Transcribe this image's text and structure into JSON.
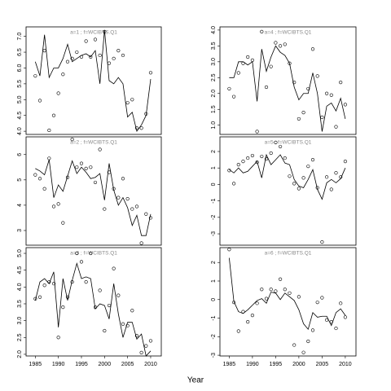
{
  "xlabel": "Year",
  "chart_data": [
    {
      "type": "line",
      "title": "a=1 ; f=WCIBTS.Q1",
      "xlim": [
        1983,
        2012.3
      ],
      "ylim": [
        3.9,
        7.3
      ],
      "yticks": [
        {
          "value": 4,
          "label": "4.0"
        },
        4.5,
        {
          "value": 5,
          "label": "5.0"
        },
        5.5,
        {
          "value": 6,
          "label": "6.0"
        },
        6.5,
        {
          "value": 7,
          "label": "7.0"
        }
      ],
      "x": [
        1985,
        1986,
        1987,
        1988,
        1989,
        1990,
        1991,
        1992,
        1993,
        1994,
        1995,
        1996,
        1997,
        1998,
        1999,
        2000,
        2001,
        2002,
        2003,
        2004,
        2005,
        2006,
        2007,
        2008,
        2009,
        2010
      ],
      "series": [
        {
          "draw": "line",
          "color": "#000000",
          "values": [
            6.2,
            5.75,
            7.05,
            5.7,
            6.0,
            6.0,
            6.3,
            6.75,
            6.2,
            6.3,
            6.4,
            6.45,
            6.35,
            6.55,
            5.5,
            7.2,
            5.6,
            5.5,
            5.7,
            5.5,
            4.45,
            4.6,
            4.0,
            4.2,
            4.5,
            5.65
          ]
        },
        {
          "draw": "points",
          "color": "#000000",
          "values": [
            5.75,
            4.97,
            6.55,
            4.03,
            4.5,
            5.2,
            5.8,
            6.2,
            6.3,
            6.5,
            6.35,
            6.85,
            6.35,
            6.9,
            6.4,
            7.15,
            6.15,
            6.3,
            6.55,
            6.4,
            4.9,
            5.0,
            4.1,
            4.1,
            4.55,
            5.85
          ]
        }
      ]
    },
    {
      "type": "line",
      "title": "a=2 ; f=WCIBTS.Q1",
      "xlim": [
        1983,
        2012.3
      ],
      "ylim": [
        2.42,
        6.7
      ],
      "yticks": [
        3,
        4,
        5,
        6
      ],
      "x": [
        1985,
        1986,
        1987,
        1988,
        1989,
        1990,
        1991,
        1992,
        1993,
        1994,
        1995,
        1996,
        1997,
        1998,
        1999,
        2000,
        2001,
        2002,
        2003,
        2004,
        2005,
        2006,
        2007,
        2008,
        2009,
        2010
      ],
      "series": [
        {
          "draw": "line",
          "color": "#000000",
          "values": [
            5.45,
            5.35,
            5.2,
            5.8,
            4.3,
            4.8,
            4.55,
            5.15,
            5.75,
            5.25,
            5.5,
            5.3,
            5.05,
            5.1,
            5.25,
            4.2,
            5.65,
            4.6,
            4.0,
            4.3,
            3.9,
            3.2,
            3.6,
            2.8,
            2.8,
            3.65
          ]
        },
        {
          "draw": "points",
          "color": "#000000",
          "values": [
            5.2,
            5.05,
            4.65,
            5.85,
            3.95,
            4.05,
            3.3,
            5.1,
            6.6,
            5.5,
            5.65,
            5.45,
            5.5,
            4.9,
            6.2,
            3.85,
            5.3,
            4.65,
            4.3,
            5.05,
            4.25,
            3.85,
            3.95,
            2.5,
            3.65,
            3.5
          ]
        }
      ]
    },
    {
      "type": "line",
      "title": "a=3 ; f=WCIBTS.Q1",
      "xlim": [
        1983,
        2012.3
      ],
      "ylim": [
        1.95,
        5.17
      ],
      "yticks": [
        {
          "value": 2,
          "label": "2.0"
        },
        2.5,
        {
          "value": 3,
          "label": "3.0"
        },
        3.5,
        {
          "value": 4,
          "label": "4.0"
        },
        4.5,
        {
          "value": 5,
          "label": "5.0"
        }
      ],
      "xticks": [
        1985,
        1990,
        1995,
        2000,
        2005,
        2010
      ],
      "x": [
        1985,
        1986,
        1987,
        1988,
        1989,
        1990,
        1991,
        1992,
        1993,
        1994,
        1995,
        1996,
        1997,
        1998,
        1999,
        2000,
        2001,
        2002,
        2003,
        2004,
        2005,
        2006,
        2007,
        2008,
        2009,
        2010
      ],
      "series": [
        {
          "draw": "line",
          "color": "#000000",
          "values": [
            3.6,
            4.15,
            4.25,
            4.1,
            4.45,
            2.8,
            4.25,
            3.6,
            4.2,
            4.7,
            4.25,
            4.3,
            4.25,
            3.35,
            3.5,
            3.45,
            3.05,
            4.1,
            3.2,
            2.5,
            2.95,
            2.95,
            2.45,
            2.6,
            1.95,
            2.1
          ]
        },
        {
          "draw": "points",
          "color": "#000000",
          "values": [
            3.65,
            3.7,
            4.05,
            4.15,
            4.1,
            2.5,
            3.4,
            3.7,
            4.15,
            5.0,
            4.75,
            4.15,
            5.0,
            3.4,
            3.9,
            2.7,
            3.45,
            4.55,
            3.75,
            2.9,
            2.85,
            3.3,
            2.55,
            2.05,
            2.25,
            2.4
          ]
        }
      ]
    },
    {
      "type": "line",
      "title": "a=4 ; f=WCIBTS.Q1",
      "xlim": [
        1983,
        2012.3
      ],
      "ylim": [
        0.71,
        4.1
      ],
      "yticks": [
        {
          "value": 1,
          "label": "1.0"
        },
        1.5,
        {
          "value": 2,
          "label": "2.0"
        },
        2.5,
        {
          "value": 3,
          "label": "3.0"
        },
        3.5,
        {
          "value": 4,
          "label": "4.0"
        }
      ],
      "x": [
        1985,
        1986,
        1987,
        1988,
        1989,
        1990,
        1991,
        1992,
        1993,
        1994,
        1995,
        1996,
        1997,
        1998,
        1999,
        2000,
        2001,
        2002,
        2003,
        2004,
        2005,
        2006,
        2007,
        2008,
        2009,
        2010
      ],
      "series": [
        {
          "draw": "line",
          "color": "#000000",
          "values": [
            2.5,
            2.5,
            3.0,
            3.0,
            2.9,
            3.0,
            1.75,
            3.4,
            2.7,
            3.15,
            3.5,
            3.3,
            3.2,
            2.95,
            2.2,
            1.8,
            2.0,
            2.0,
            2.65,
            2.0,
            0.8,
            1.6,
            1.7,
            1.45,
            1.85,
            1.2
          ]
        },
        {
          "draw": "points",
          "color": "#000000",
          "values": [
            2.15,
            1.9,
            2.65,
            2.95,
            3.15,
            3.05,
            0.8,
            3.95,
            2.2,
            2.85,
            3.6,
            3.5,
            3.55,
            2.95,
            2.35,
            1.2,
            1.4,
            2.15,
            3.4,
            2.55,
            1.25,
            2.0,
            1.95,
            0.95,
            2.35,
            1.65
          ]
        }
      ]
    },
    {
      "type": "line",
      "title": "a=5 ; f=WCIBTS.Q1",
      "xlim": [
        1983,
        2012.3
      ],
      "ylim": [
        -3.69,
        2.89
      ],
      "yticks": [
        -3,
        -2,
        -1,
        0,
        1,
        2
      ],
      "x": [
        1985,
        1986,
        1987,
        1988,
        1989,
        1990,
        1991,
        1992,
        1993,
        1994,
        1995,
        1996,
        1997,
        1998,
        1999,
        2000,
        2001,
        2002,
        2003,
        2004,
        2005,
        2006,
        2007,
        2008,
        2009,
        2010
      ],
      "series": [
        {
          "draw": "line",
          "color": "#000000",
          "values": [
            0.9,
            0.7,
            1.0,
            0.7,
            0.8,
            1.1,
            1.4,
            0.4,
            1.8,
            1.2,
            1.5,
            1.8,
            1.3,
            1.2,
            0.3,
            -0.1,
            -0.2,
            0.3,
            0.9,
            -0.3,
            -0.9,
            0.1,
            0.3,
            0.1,
            0.35,
            1.0
          ]
        },
        {
          "draw": "points",
          "color": "#000000",
          "values": [
            0.85,
            0.05,
            1.2,
            1.4,
            1.6,
            1.75,
            1.35,
            1.7,
            1.55,
            1.9,
            2.55,
            2.3,
            1.6,
            0.5,
            0.05,
            -0.25,
            0.4,
            1.1,
            1.5,
            -0.2,
            -3.5,
            0.45,
            -0.3,
            0.7,
            0.45,
            1.4
          ]
        }
      ]
    },
    {
      "type": "line",
      "title": "a=6 ; f=WCIBTS.Q1",
      "xlim": [
        1983,
        2012.3
      ],
      "ylim": [
        -3.04,
        2.8
      ],
      "yticks": [
        -3,
        -2,
        -1,
        0,
        1,
        2
      ],
      "xticks": [
        1985,
        1990,
        1995,
        2000,
        2005,
        2010
      ],
      "x": [
        1985,
        1986,
        1987,
        1988,
        1989,
        1990,
        1991,
        1992,
        1993,
        1994,
        1995,
        1996,
        1997,
        1998,
        1999,
        2000,
        2001,
        2002,
        2003,
        2004,
        2005,
        2006,
        2007,
        2008,
        2009,
        2010
      ],
      "series": [
        {
          "draw": "line",
          "color": "#000000",
          "values": [
            2.25,
            -0.1,
            -0.65,
            -0.75,
            -0.55,
            -0.3,
            -0.05,
            0.05,
            -0.2,
            0.4,
            0.35,
            0.0,
            0.35,
            0.15,
            -0.05,
            -0.55,
            -1.3,
            -1.6,
            -0.7,
            -0.95,
            -0.9,
            -0.9,
            -1.4,
            -0.7,
            -0.5,
            -0.85
          ]
        },
        {
          "draw": "points",
          "color": "#000000",
          "values": [
            2.7,
            -0.15,
            -1.7,
            -0.65,
            -1.2,
            -0.85,
            -0.2,
            0.55,
            0.05,
            0.55,
            0.45,
            1.1,
            0.55,
            0.35,
            -2.45,
            0.15,
            -2.85,
            -2.25,
            -1.65,
            -0.15,
            0.1,
            -1.1,
            -1.2,
            -1.55,
            -0.2,
            -0.95
          ]
        }
      ]
    }
  ]
}
